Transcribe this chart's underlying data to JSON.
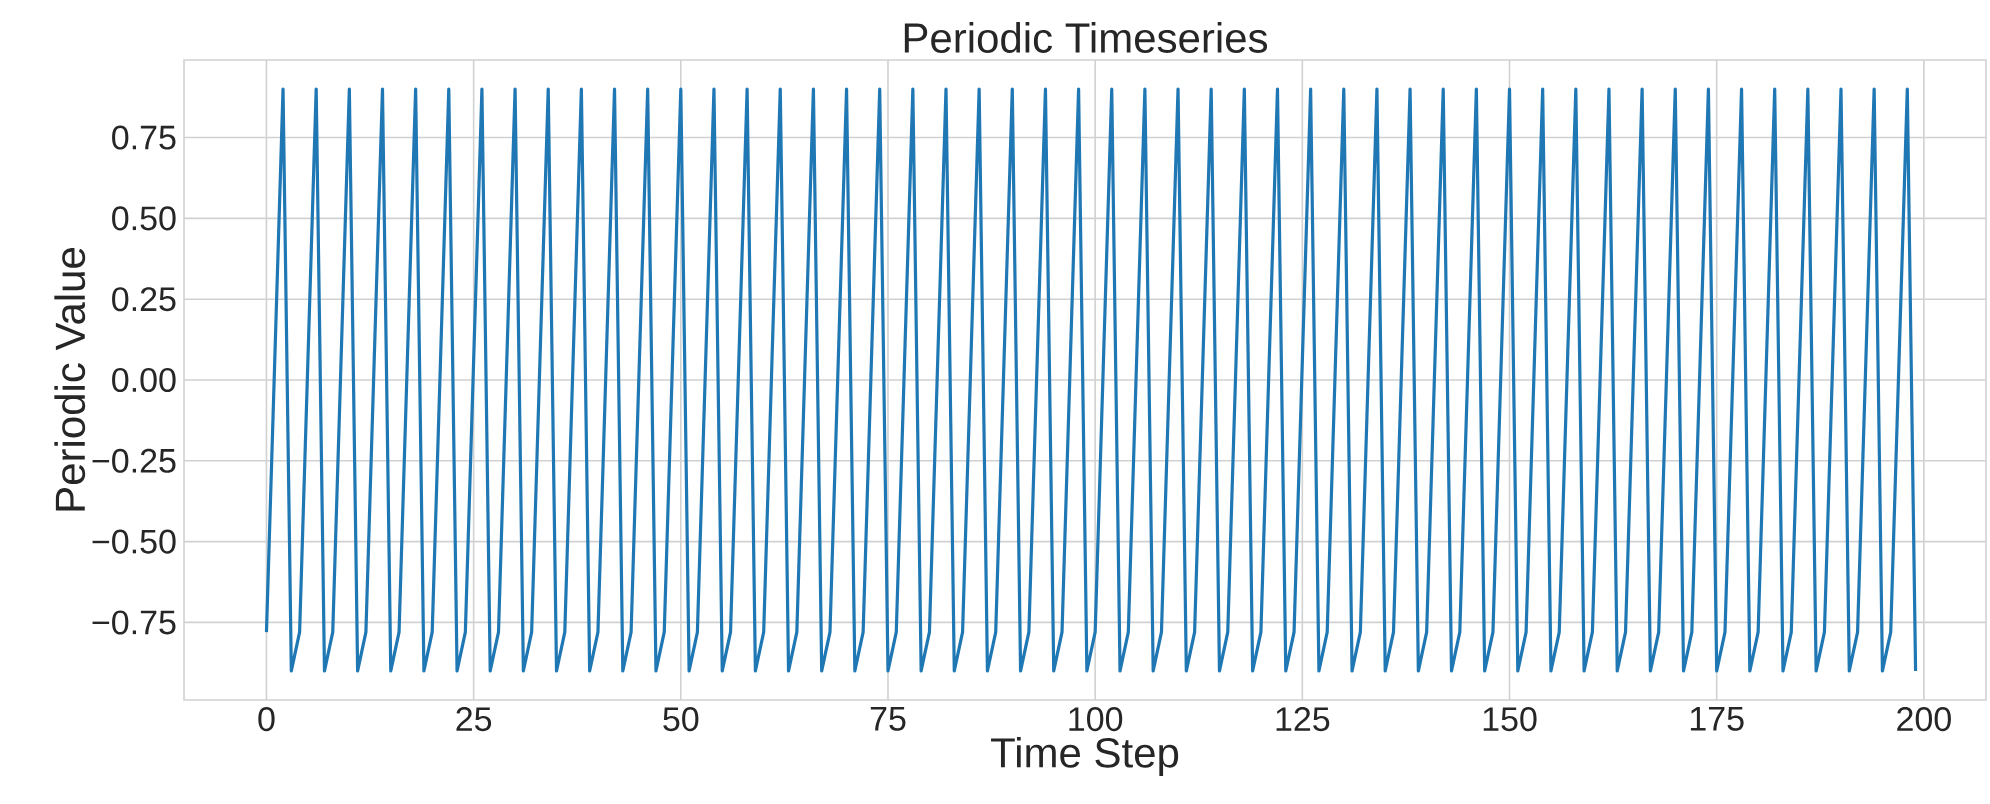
{
  "chart_data": {
    "type": "line",
    "title": "Periodic Timeseries",
    "xlabel": "Time Step",
    "ylabel": "Periodic Value",
    "x": [
      0,
      1,
      2,
      3,
      4,
      5,
      6,
      7,
      8,
      9,
      10,
      11,
      12,
      13,
      14,
      15,
      16,
      17,
      18,
      19,
      20,
      21,
      22,
      23,
      24,
      25,
      26,
      27,
      28,
      29,
      30,
      31,
      32,
      33,
      34,
      35,
      36,
      37,
      38,
      39,
      40,
      41,
      42,
      43,
      44,
      45,
      46,
      47,
      48,
      49,
      50,
      51,
      52,
      53,
      54,
      55,
      56,
      57,
      58,
      59,
      60,
      61,
      62,
      63,
      64,
      65,
      66,
      67,
      68,
      69,
      70,
      71,
      72,
      73,
      74,
      75,
      76,
      77,
      78,
      79,
      80,
      81,
      82,
      83,
      84,
      85,
      86,
      87,
      88,
      89,
      90,
      91,
      92,
      93,
      94,
      95,
      96,
      97,
      98,
      99,
      100,
      101,
      102,
      103,
      104,
      105,
      106,
      107,
      108,
      109,
      110,
      111,
      112,
      113,
      114,
      115,
      116,
      117,
      118,
      119,
      120,
      121,
      122,
      123,
      124,
      125,
      126,
      127,
      128,
      129,
      130,
      131,
      132,
      133,
      134,
      135,
      136,
      137,
      138,
      139,
      140,
      141,
      142,
      143,
      144,
      145,
      146,
      147,
      148,
      149,
      150,
      151,
      152,
      153,
      154,
      155,
      156,
      157,
      158,
      159,
      160,
      161,
      162,
      163,
      164,
      165,
      166,
      167,
      168,
      169,
      170,
      171,
      172,
      173,
      174,
      175,
      176,
      177,
      178,
      179,
      180,
      181,
      182,
      183,
      184,
      185,
      186,
      187,
      188,
      189,
      190,
      191,
      192,
      193,
      194,
      195,
      196,
      197,
      198,
      199
    ],
    "series": [
      {
        "color": "#1f77b4",
        "values": [
          -0.78,
          0.06,
          0.9,
          -0.9,
          -0.78,
          0.06,
          0.9,
          -0.9,
          -0.78,
          0.06,
          0.9,
          -0.9,
          -0.78,
          0.06,
          0.9,
          -0.9,
          -0.78,
          0.06,
          0.9,
          -0.9,
          -0.78,
          0.06,
          0.9,
          -0.9,
          -0.78,
          0.06,
          0.9,
          -0.9,
          -0.78,
          0.06,
          0.9,
          -0.9,
          -0.78,
          0.06,
          0.9,
          -0.9,
          -0.78,
          0.06,
          0.9,
          -0.9,
          -0.78,
          0.06,
          0.9,
          -0.9,
          -0.78,
          0.06,
          0.9,
          -0.9,
          -0.78,
          0.06,
          0.9,
          -0.9,
          -0.78,
          0.06,
          0.9,
          -0.9,
          -0.78,
          0.06,
          0.9,
          -0.9,
          -0.78,
          0.06,
          0.9,
          -0.9,
          -0.78,
          0.06,
          0.9,
          -0.9,
          -0.78,
          0.06,
          0.9,
          -0.9,
          -0.78,
          0.06,
          0.9,
          -0.9,
          -0.78,
          0.06,
          0.9,
          -0.9,
          -0.78,
          0.06,
          0.9,
          -0.9,
          -0.78,
          0.06,
          0.9,
          -0.9,
          -0.78,
          0.06,
          0.9,
          -0.9,
          -0.78,
          0.06,
          0.9,
          -0.9,
          -0.78,
          0.06,
          0.9,
          -0.9,
          -0.78,
          0.06,
          0.9,
          -0.9,
          -0.78,
          0.06,
          0.9,
          -0.9,
          -0.78,
          0.06,
          0.9,
          -0.9,
          -0.78,
          0.06,
          0.9,
          -0.9,
          -0.78,
          0.06,
          0.9,
          -0.9,
          -0.78,
          0.06,
          0.9,
          -0.9,
          -0.78,
          0.06,
          0.9,
          -0.9,
          -0.78,
          0.06,
          0.9,
          -0.9,
          -0.78,
          0.06,
          0.9,
          -0.9,
          -0.78,
          0.06,
          0.9,
          -0.9,
          -0.78,
          0.06,
          0.9,
          -0.9,
          -0.78,
          0.06,
          0.9,
          -0.9,
          -0.78,
          0.06,
          0.9,
          -0.9,
          -0.78,
          0.06,
          0.9,
          -0.9,
          -0.78,
          0.06,
          0.9,
          -0.9,
          -0.78,
          0.06,
          0.9,
          -0.9,
          -0.78,
          0.06,
          0.9,
          -0.9,
          -0.78,
          0.06,
          0.9,
          -0.9,
          -0.78,
          0.06,
          0.9,
          -0.9,
          -0.78,
          0.06,
          0.9,
          -0.9,
          -0.78,
          0.06,
          0.9,
          -0.9,
          -0.78,
          0.06,
          0.9,
          -0.9,
          -0.78,
          0.06,
          0.9,
          -0.9,
          -0.78,
          0.06,
          0.9,
          -0.9,
          -0.78,
          0.06,
          0.9,
          -0.9
        ]
      }
    ],
    "xlim": [
      -9.95,
      207.5
    ],
    "ylim": [
      -0.99,
      0.99
    ],
    "xticks": [
      0,
      25,
      50,
      75,
      100,
      125,
      150,
      175,
      200
    ],
    "yticks": [
      {
        "value": -0.75,
        "label": "−0.75"
      },
      {
        "value": -0.5,
        "label": "−0.50"
      },
      {
        "value": -0.25,
        "label": "−0.25"
      },
      {
        "value": 0,
        "label": "0.00"
      },
      {
        "value": 0.25,
        "label": "0.25"
      },
      {
        "value": 0.5,
        "label": "0.50"
      },
      {
        "value": 0.75,
        "label": "0.75"
      }
    ],
    "grid": true,
    "line_style": "solid",
    "marker": "none"
  }
}
